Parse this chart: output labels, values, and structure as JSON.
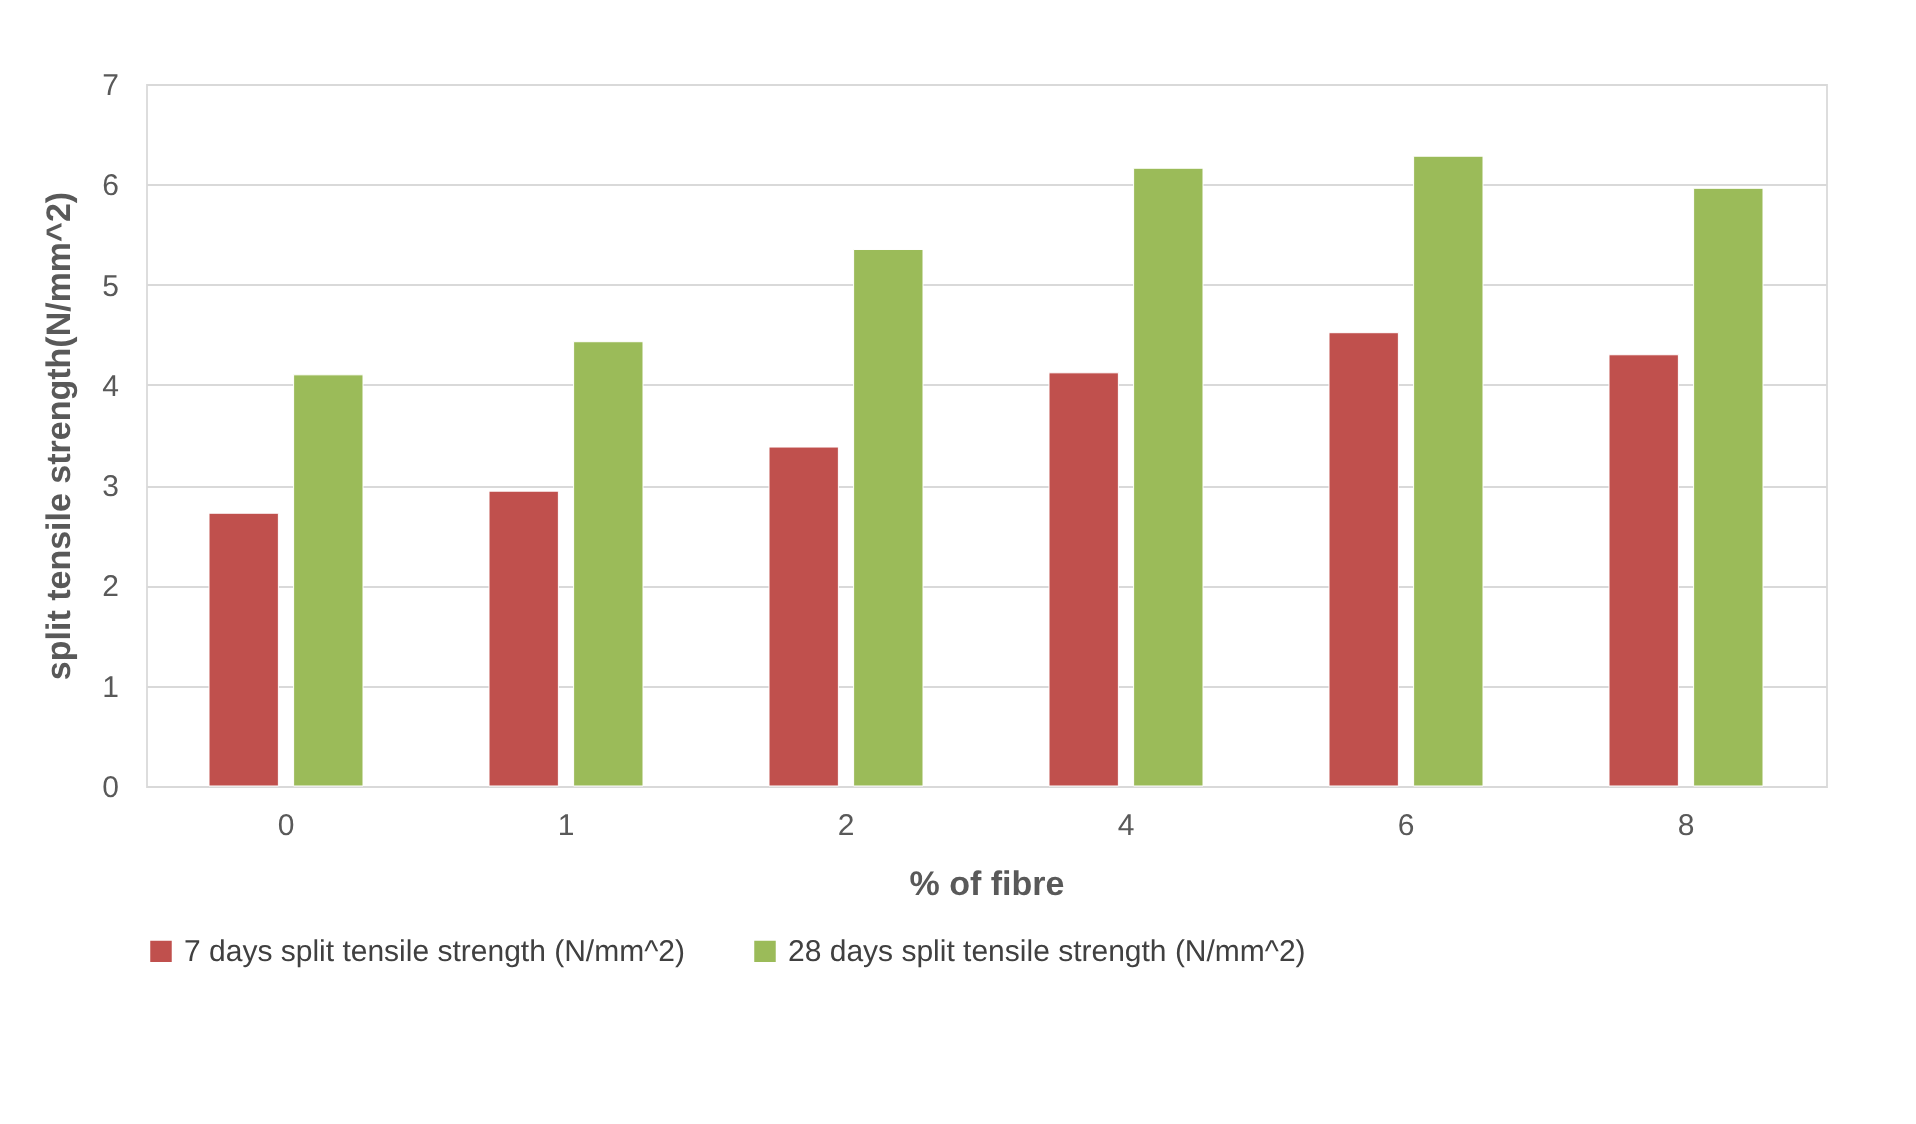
{
  "chart_data": {
    "type": "bar",
    "xlabel": "% of fibre",
    "ylabel": "split tensile strength(N/mm^2)",
    "categories": [
      "0",
      "1",
      "2",
      "4",
      "6",
      "8"
    ],
    "series": [
      {
        "name": "7 days split tensile strength (N/mm^2)",
        "color": "#c0504d",
        "values": [
          2.72,
          2.94,
          3.38,
          4.12,
          4.52,
          4.3
        ]
      },
      {
        "name": "28 days split tensile strength (N/mm^2)",
        "color": "#9bbb59",
        "values": [
          4.1,
          4.43,
          5.35,
          6.16,
          6.28,
          5.96
        ]
      }
    ],
    "ylim": [
      0,
      7
    ],
    "yticks": [
      0,
      1,
      2,
      3,
      4,
      5,
      6,
      7
    ],
    "grid": "y",
    "legend": "bottom"
  }
}
